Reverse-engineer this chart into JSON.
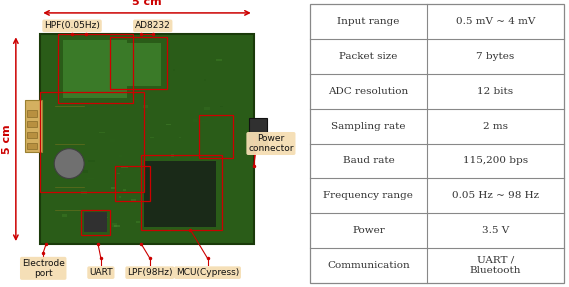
{
  "table_rows": [
    [
      "Input range",
      "0.5 mV ~ 4 mV"
    ],
    [
      "Packet size",
      "7 bytes"
    ],
    [
      "ADC resolution",
      "12 bits"
    ],
    [
      "Sampling rate",
      "2 ms"
    ],
    [
      "Baud rate",
      "115,200 bps"
    ],
    [
      "Frequency range",
      "0.05 Hz ~ 98 Hz"
    ],
    [
      "Power",
      "3.5 V"
    ],
    [
      "Communication",
      "UART /\nBluetooth"
    ]
  ],
  "table_border_color": "#888888",
  "table_text_color": "#333333",
  "bg_color": "#ffffff",
  "label_bg_color": "#f5deb3",
  "pcb_labels_top": [
    "HPF(0.05Hz)",
    "AD8232"
  ],
  "pcb_labels_bottom": [
    "Electrode\nport",
    "UART",
    "LPF(98Hz)",
    "MCU(Cypress)"
  ],
  "pcb_label_right": "Power\nconnector",
  "dim_5cm_top": "5 cm",
  "dim_5cm_left": "5 cm",
  "arrow_color": "#cc0000",
  "dim_text_color": "#cc0000",
  "label_fontsize": 6.5,
  "table_fontsize": 7.5,
  "pcb_green_dark": "#2a5c18",
  "pcb_green_mid": "#3a7a28",
  "pcb_green_light": "#4a9a38"
}
